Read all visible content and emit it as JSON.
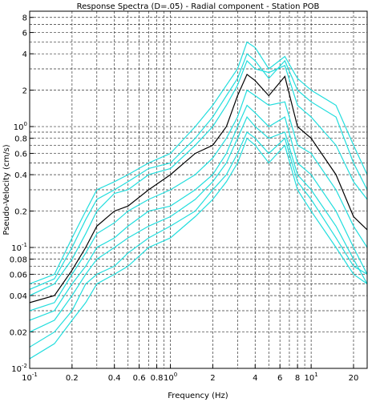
{
  "chart_data": {
    "type": "line",
    "title": "Response Spectra (D=.05) - Radial component - Station POB",
    "xlabel": "Frequency (Hz)",
    "ylabel": "Pseudo-Velocity (cm/s)",
    "log_x": true,
    "log_y": true,
    "grid": true,
    "xlim": [
      0.1,
      25
    ],
    "ylim": [
      0.01,
      9
    ],
    "xticks": [
      {
        "value": 0.1,
        "label": "10",
        "exp": "-1"
      },
      0.2,
      0.4,
      0.6,
      0.8,
      {
        "value": 1,
        "label": "10",
        "exp": "0"
      },
      2,
      4,
      6,
      8,
      {
        "value": 10,
        "label": "10",
        "exp": "1"
      },
      20
    ],
    "xgrid": [
      0.3,
      0.5,
      0.7,
      0.9,
      3,
      5,
      7,
      9
    ],
    "yticks": [
      {
        "value": 0.01,
        "label": "10",
        "exp": "-2"
      },
      0.02,
      0.04,
      0.06,
      0.08,
      {
        "value": 0.1,
        "label": "10",
        "exp": "-1"
      },
      0.2,
      0.4,
      0.6,
      0.8,
      {
        "value": 1,
        "label": "10",
        "exp": "0"
      },
      2,
      4,
      6,
      8
    ],
    "ygrid": [
      0.03,
      0.05,
      0.07,
      0.09,
      0.3,
      0.5,
      0.7,
      0.9,
      3,
      5,
      7
    ],
    "x": [
      0.1,
      0.15,
      0.2,
      0.25,
      0.3,
      0.4,
      0.5,
      0.7,
      1,
      1.5,
      2,
      2.5,
      3,
      3.5,
      4,
      5,
      6.5,
      8,
      10,
      15,
      20,
      25
    ],
    "series": [
      {
        "color": "#22dddd",
        "values": [
          0.05,
          0.06,
          0.12,
          0.2,
          0.3,
          0.35,
          0.4,
          0.5,
          0.6,
          1.0,
          1.5,
          2.2,
          3.0,
          5.0,
          4.5,
          3.0,
          3.8,
          2.5,
          2.0,
          1.5,
          0.7,
          0.4
        ]
      },
      {
        "color": "#22dddd",
        "values": [
          0.045,
          0.055,
          0.1,
          0.17,
          0.25,
          0.3,
          0.35,
          0.45,
          0.5,
          0.8,
          1.2,
          1.8,
          2.5,
          4.0,
          3.5,
          2.5,
          3.5,
          2.0,
          1.6,
          1.2,
          0.5,
          0.3
        ]
      },
      {
        "color": "#22dddd",
        "values": [
          0.04,
          0.05,
          0.08,
          0.13,
          0.2,
          0.28,
          0.3,
          0.4,
          0.45,
          0.7,
          1.0,
          1.5,
          2.2,
          3.5,
          3.0,
          2.8,
          3.2,
          1.5,
          1.2,
          0.7,
          0.35,
          0.25
        ]
      },
      {
        "color": "#22dddd",
        "values": [
          0.03,
          0.035,
          0.06,
          0.09,
          0.13,
          0.16,
          0.2,
          0.25,
          0.3,
          0.4,
          0.55,
          0.8,
          1.2,
          2.0,
          1.8,
          1.5,
          1.6,
          0.7,
          0.6,
          0.3,
          0.15,
          0.1
        ]
      },
      {
        "color": "#22dddd",
        "values": [
          0.025,
          0.03,
          0.05,
          0.07,
          0.1,
          0.12,
          0.15,
          0.2,
          0.22,
          0.3,
          0.4,
          0.6,
          1.0,
          1.5,
          1.3,
          1.0,
          1.2,
          0.5,
          0.4,
          0.2,
          0.1,
          0.06
        ]
      },
      {
        "color": "#22dddd",
        "values": [
          0.02,
          0.025,
          0.04,
          0.06,
          0.08,
          0.1,
          0.12,
          0.15,
          0.18,
          0.25,
          0.35,
          0.5,
          0.8,
          1.2,
          1.0,
          0.8,
          0.9,
          0.4,
          0.3,
          0.15,
          0.08,
          0.05
        ]
      },
      {
        "color": "#22dddd",
        "values": [
          0.015,
          0.02,
          0.03,
          0.05,
          0.06,
          0.07,
          0.09,
          0.12,
          0.15,
          0.2,
          0.3,
          0.4,
          0.6,
          0.9,
          0.8,
          0.6,
          0.8,
          0.35,
          0.25,
          0.12,
          0.07,
          0.06
        ]
      },
      {
        "color": "#22dddd",
        "values": [
          0.012,
          0.016,
          0.025,
          0.035,
          0.05,
          0.06,
          0.07,
          0.1,
          0.12,
          0.18,
          0.25,
          0.35,
          0.5,
          0.8,
          0.7,
          0.5,
          0.7,
          0.3,
          0.2,
          0.1,
          0.06,
          0.05
        ]
      },
      {
        "color": "#000000",
        "values": [
          0.035,
          0.04,
          0.065,
          0.1,
          0.15,
          0.2,
          0.22,
          0.3,
          0.4,
          0.6,
          0.7,
          1.0,
          1.8,
          2.7,
          2.4,
          1.8,
          2.6,
          1.0,
          0.8,
          0.4,
          0.18,
          0.14
        ]
      }
    ]
  }
}
